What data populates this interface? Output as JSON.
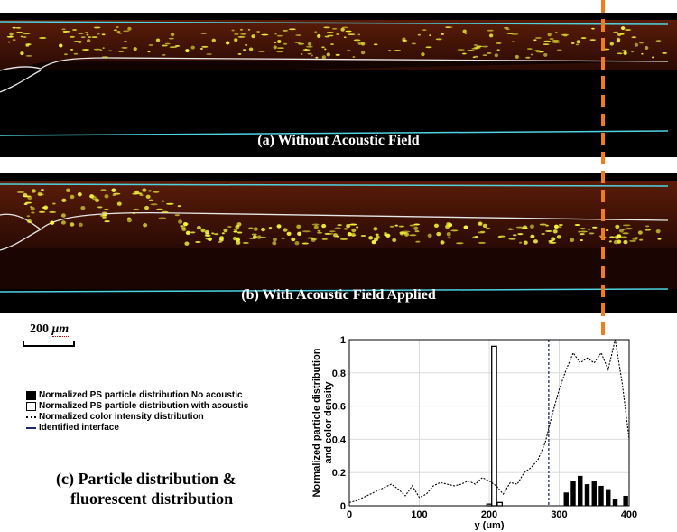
{
  "panels": {
    "a_caption": "(a) Without Acoustic Field",
    "b_caption": "(b) With Acoustic Field Applied"
  },
  "scale_bar": {
    "value": "200",
    "unit": "μm"
  },
  "legend": {
    "items": [
      "Normalized PS particle distribution No acoustic",
      "Normalized PS particle distribution with acoustic",
      "Normalized color intensity distribution",
      "Identified interface"
    ]
  },
  "panel_c": {
    "title_line1": "(c) Particle distribution &",
    "title_line2": "fluorescent distribution"
  },
  "colors": {
    "channel_wall": "#4fd3e0",
    "interface": "#e8e8e8",
    "particles": "#f2f53a",
    "marker": "#f07c1c",
    "chart_interface": "#1a2a6c"
  },
  "chart_data": {
    "type": "bar",
    "xlabel": "y (um)",
    "ylabel_line1": "Normalized particle distribution",
    "ylabel_line2": "and color density",
    "xlim": [
      0,
      400
    ],
    "ylim": [
      0,
      1
    ],
    "xticks": [
      "0",
      "100",
      "200",
      "300",
      "400"
    ],
    "yticks": [
      "0",
      "0.2",
      "0.4",
      "0.6",
      "0.8",
      "1"
    ],
    "grid": true,
    "series": [
      {
        "name": "Normalized PS particle distribution No acoustic",
        "bins": [
          {
            "x": 310,
            "y": 0.08
          },
          {
            "x": 320,
            "y": 0.15
          },
          {
            "x": 330,
            "y": 0.18
          },
          {
            "x": 340,
            "y": 0.13
          },
          {
            "x": 350,
            "y": 0.15
          },
          {
            "x": 360,
            "y": 0.12
          },
          {
            "x": 370,
            "y": 0.1
          },
          {
            "x": 380,
            "y": 0.04
          },
          {
            "x": 395,
            "y": 0.06
          }
        ]
      },
      {
        "name": "Normalized PS particle distribution with acoustic",
        "bins": [
          {
            "x": 200,
            "y": 0.01
          },
          {
            "x": 207,
            "y": 0.96
          },
          {
            "x": 215,
            "y": 0.02
          }
        ]
      },
      {
        "name": "Normalized color intensity distribution",
        "x": [
          0,
          10,
          20,
          30,
          40,
          50,
          60,
          70,
          80,
          90,
          100,
          110,
          120,
          130,
          140,
          150,
          160,
          170,
          180,
          190,
          200,
          210,
          220,
          230,
          240,
          250,
          260,
          270,
          280,
          290,
          300,
          310,
          320,
          330,
          340,
          350,
          360,
          370,
          380,
          390,
          400
        ],
        "y": [
          0.02,
          0.03,
          0.05,
          0.07,
          0.09,
          0.11,
          0.13,
          0.1,
          0.06,
          0.12,
          0.05,
          0.07,
          0.12,
          0.14,
          0.13,
          0.12,
          0.13,
          0.15,
          0.13,
          0.17,
          0.15,
          0.12,
          0.07,
          0.14,
          0.13,
          0.2,
          0.23,
          0.28,
          0.38,
          0.55,
          0.7,
          0.82,
          0.92,
          0.86,
          0.89,
          0.86,
          0.92,
          0.82,
          1.0,
          0.74,
          0.4
        ]
      },
      {
        "name": "Identified interface",
        "x": 285
      }
    ]
  }
}
